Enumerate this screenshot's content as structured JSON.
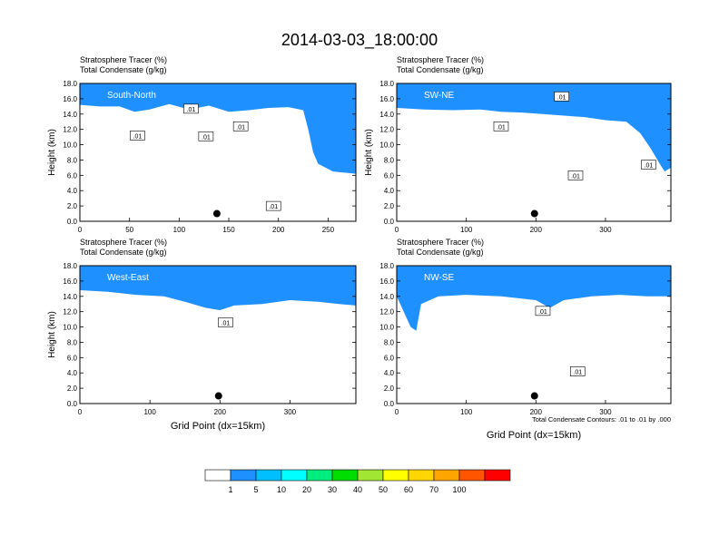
{
  "title": "2014-03-03_18:00:00",
  "chart_data": [
    {
      "type": "heatmap",
      "header_left_1": "Stratosphere Tracer   (%)",
      "header_left_2": "Total Condensate   (g/kg)",
      "direction_label": "South-North",
      "ylabel": "Height (km)",
      "xlabel": "",
      "xlim": [
        0,
        278
      ],
      "ylim": [
        0,
        18
      ],
      "x_ticks": [
        "0",
        "50",
        "100",
        "150",
        "200",
        "250"
      ],
      "x_tick_values": [
        0,
        50,
        100,
        150,
        200,
        250
      ],
      "y_ticks": [
        "0.0",
        "2.0",
        "4.0",
        "6.0",
        "8.0",
        "10.0",
        "12.0",
        "14.0",
        "16.0",
        "18.0"
      ],
      "marker": {
        "x": 138,
        "y": 1.0
      },
      "contour_labels": [
        {
          "text": ".01",
          "x": 112,
          "y": 14.7
        },
        {
          "text": ".01",
          "x": 58,
          "y": 11.2
        },
        {
          "text": ".01",
          "x": 127,
          "y": 11.1
        },
        {
          "text": ".01",
          "x": 162,
          "y": 12.4
        },
        {
          "text": ".01",
          "x": 195,
          "y": 2.0
        }
      ],
      "tracer_top": [
        [
          0,
          15.2
        ],
        [
          20,
          15.0
        ],
        [
          40,
          15.0
        ],
        [
          55,
          14.3
        ],
        [
          70,
          14.6
        ],
        [
          90,
          15.3
        ],
        [
          110,
          14.6
        ],
        [
          130,
          15.1
        ],
        [
          150,
          14.3
        ],
        [
          170,
          14.5
        ],
        [
          190,
          14.8
        ],
        [
          210,
          14.9
        ],
        [
          225,
          14.5
        ],
        [
          230,
          12.0
        ],
        [
          235,
          9.0
        ],
        [
          240,
          7.5
        ],
        [
          255,
          6.5
        ],
        [
          278,
          6.2
        ]
      ]
    },
    {
      "type": "heatmap",
      "header_left_1": "Stratosphere Tracer   (%)",
      "header_left_2": "Total Condensate   (g/kg)",
      "direction_label": "SW-NE",
      "ylabel": "Height (km)",
      "xlabel": "",
      "xlim": [
        0,
        394
      ],
      "ylim": [
        0,
        18
      ],
      "x_ticks": [
        "0",
        "100",
        "200",
        "300"
      ],
      "x_tick_values": [
        0,
        100,
        200,
        300
      ],
      "y_ticks": [
        "0.0",
        "2.0",
        "4.0",
        "6.0",
        "8.0",
        "10.0",
        "12.0",
        "14.0",
        "16.0",
        "18.0"
      ],
      "marker": {
        "x": 198,
        "y": 1.0
      },
      "contour_labels": [
        {
          "text": ".01",
          "x": 237,
          "y": 16.3
        },
        {
          "text": ".01",
          "x": 150,
          "y": 12.4
        },
        {
          "text": ".01",
          "x": 257,
          "y": 6.0
        },
        {
          "text": ".01",
          "x": 362,
          "y": 7.4
        }
      ],
      "tracer_top": [
        [
          0,
          14.8
        ],
        [
          40,
          14.6
        ],
        [
          80,
          14.5
        ],
        [
          120,
          14.6
        ],
        [
          150,
          14.3
        ],
        [
          180,
          14.2
        ],
        [
          210,
          14.0
        ],
        [
          240,
          13.8
        ],
        [
          270,
          13.6
        ],
        [
          300,
          13.2
        ],
        [
          330,
          13.0
        ],
        [
          350,
          11.5
        ],
        [
          365,
          9.5
        ],
        [
          378,
          7.5
        ],
        [
          385,
          6.5
        ],
        [
          394,
          7.0
        ]
      ]
    },
    {
      "type": "heatmap",
      "header_left_1": "Stratosphere Tracer   (%)",
      "header_left_2": "Total Condensate   (g/kg)",
      "direction_label": "West-East",
      "ylabel": "Height (km)",
      "xlabel": "Grid Point (dx=15km)",
      "xlim": [
        0,
        394
      ],
      "ylim": [
        0,
        18
      ],
      "x_ticks": [
        "0",
        "100",
        "200",
        "300"
      ],
      "x_tick_values": [
        0,
        100,
        200,
        300
      ],
      "y_ticks": [
        "0.0",
        "2.0",
        "4.0",
        "6.0",
        "8.0",
        "10.0",
        "12.0",
        "14.0",
        "16.0",
        "18.0"
      ],
      "marker": {
        "x": 198,
        "y": 1.0
      },
      "contour_labels": [
        {
          "text": ".01",
          "x": 208,
          "y": 10.6
        }
      ],
      "tracer_top": [
        [
          0,
          14.8
        ],
        [
          40,
          14.6
        ],
        [
          80,
          14.2
        ],
        [
          120,
          14.0
        ],
        [
          150,
          13.3
        ],
        [
          180,
          12.5
        ],
        [
          200,
          12.2
        ],
        [
          220,
          12.8
        ],
        [
          260,
          13.0
        ],
        [
          300,
          13.5
        ],
        [
          340,
          13.3
        ],
        [
          370,
          13.0
        ],
        [
          394,
          12.8
        ]
      ]
    },
    {
      "type": "heatmap",
      "header_left_1": "Stratosphere Tracer   (%)",
      "header_left_2": "Total Condensate   (g/kg)",
      "direction_label": "NW-SE",
      "ylabel": "",
      "xlabel": "Grid Point (dx=15km)",
      "xlim": [
        0,
        394
      ],
      "ylim": [
        0,
        18
      ],
      "x_ticks": [
        "0",
        "100",
        "200",
        "300"
      ],
      "x_tick_values": [
        0,
        100,
        200,
        300
      ],
      "y_ticks": [
        "0.0",
        "2.0",
        "4.0",
        "6.0",
        "8.0",
        "10.0",
        "12.0",
        "14.0",
        "16.0",
        "18.0"
      ],
      "marker": {
        "x": 198,
        "y": 1.0
      },
      "contour_labels": [
        {
          "text": ".01",
          "x": 210,
          "y": 12.1
        },
        {
          "text": ".01",
          "x": 260,
          "y": 4.2
        }
      ],
      "contour_info": "Total Condensate Contours: .01 to .01 by .000",
      "tracer_top": [
        [
          0,
          14.0
        ],
        [
          10,
          12.0
        ],
        [
          20,
          10.0
        ],
        [
          28,
          9.5
        ],
        [
          35,
          13.0
        ],
        [
          60,
          14.0
        ],
        [
          100,
          14.2
        ],
        [
          150,
          14.0
        ],
        [
          200,
          13.5
        ],
        [
          220,
          12.5
        ],
        [
          240,
          13.5
        ],
        [
          280,
          14.0
        ],
        [
          320,
          14.2
        ],
        [
          360,
          14.0
        ],
        [
          394,
          14.0
        ]
      ]
    }
  ],
  "colorbar": {
    "labels": [
      "1",
      "5",
      "10",
      "20",
      "30",
      "40",
      "50",
      "60",
      "70",
      "100"
    ],
    "colors": [
      "#ffffff",
      "#1e90ff",
      "#00bfff",
      "#00ffff",
      "#00ee7f",
      "#00dd00",
      "#a0e632",
      "#ffff00",
      "#ffd700",
      "#ffa500",
      "#ff5500",
      "#ff0000"
    ]
  }
}
